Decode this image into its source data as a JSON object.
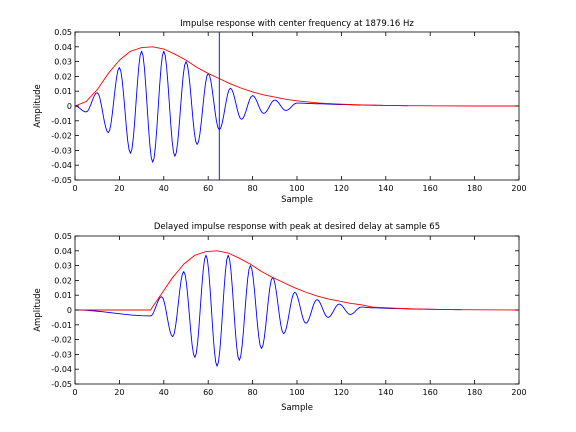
{
  "chart_data": [
    {
      "type": "line",
      "title": "Impulse response with center frequency at 1879.16 Hz",
      "xlabel": "Sample",
      "ylabel": "Amplitude",
      "xlim": [
        0,
        200
      ],
      "ylim": [
        -0.05,
        0.05
      ],
      "xticks": [
        "0",
        "20",
        "40",
        "60",
        "80",
        "100",
        "120",
        "140",
        "160",
        "180",
        "200"
      ],
      "yticks": [
        "0.05",
        "0.04",
        "0.03",
        "0.02",
        "0.01",
        "0",
        "-0.01",
        "-0.02",
        "-0.03",
        "-0.04",
        "-0.05"
      ],
      "grid": false,
      "series": [
        {
          "color": "#0000ff",
          "style": "oscillating impulse response",
          "x": [
            0,
            5,
            10,
            15,
            20,
            25,
            30,
            35,
            40,
            45,
            50,
            55,
            60,
            65,
            70,
            75,
            80,
            85,
            90,
            95,
            100,
            110,
            120,
            130,
            140,
            150
          ],
          "values": [
            0,
            -0.004,
            0.009,
            -0.018,
            0.026,
            -0.032,
            0.037,
            -0.038,
            0.037,
            -0.034,
            0.03,
            -0.026,
            0.022,
            -0.016,
            0.012,
            -0.009,
            0.007,
            -0.005,
            0.004,
            -0.003,
            0.002,
            0.0015,
            0.001,
            0.0006,
            0.0004,
            0.0002
          ]
        },
        {
          "color": "#ff0000",
          "style": "envelope",
          "x": [
            0,
            5,
            10,
            15,
            20,
            25,
            30,
            35,
            40,
            45,
            50,
            55,
            60,
            65,
            70,
            75,
            80,
            85,
            90,
            95,
            100,
            110,
            120,
            130,
            140,
            150,
            160,
            180,
            200
          ],
          "values": [
            0,
            0.003,
            0.011,
            0.022,
            0.031,
            0.037,
            0.0395,
            0.04,
            0.0385,
            0.035,
            0.031,
            0.026,
            0.022,
            0.0185,
            0.015,
            0.012,
            0.0095,
            0.0075,
            0.006,
            0.0045,
            0.0035,
            0.002,
            0.0012,
            0.0007,
            0.0004,
            0.0002,
            0.0001,
            0,
            0
          ]
        },
        {
          "color": "#0000ff",
          "style": "vertical marker",
          "x": [
            65,
            65
          ],
          "values": [
            -0.05,
            0.05
          ]
        }
      ]
    },
    {
      "type": "line",
      "title": "Delayed impulse response with peak at desired delay at sample 65",
      "xlabel": "Sample",
      "ylabel": "Amplitude",
      "xlim": [
        0,
        200
      ],
      "ylim": [
        -0.05,
        0.05
      ],
      "xticks": [
        "0",
        "20",
        "40",
        "60",
        "80",
        "100",
        "120",
        "140",
        "160",
        "180",
        "200"
      ],
      "yticks": [
        "0.05",
        "0.04",
        "0.03",
        "0.02",
        "0.01",
        "0",
        "-0.01",
        "-0.02",
        "-0.03",
        "-0.04",
        "-0.05"
      ],
      "grid": false,
      "series": [
        {
          "color": "#0000ff",
          "style": "delayed oscillating impulse response",
          "x": [
            0,
            34,
            39,
            44,
            49,
            54,
            59,
            64,
            69,
            74,
            79,
            84,
            89,
            94,
            99,
            104,
            109,
            114,
            119,
            124,
            129,
            134,
            144,
            154,
            164,
            174
          ],
          "values": [
            0,
            -0.004,
            0.009,
            -0.018,
            0.026,
            -0.032,
            0.037,
            -0.038,
            0.037,
            -0.034,
            0.03,
            -0.026,
            0.022,
            -0.016,
            0.012,
            -0.009,
            0.007,
            -0.005,
            0.004,
            -0.003,
            0.002,
            0.0015,
            0.001,
            0.0006,
            0.0004,
            0.0002
          ]
        },
        {
          "color": "#ff0000",
          "style": "envelope",
          "x": [
            0,
            34,
            39,
            44,
            49,
            54,
            59,
            64,
            69,
            74,
            79,
            84,
            89,
            94,
            99,
            104,
            109,
            114,
            119,
            124,
            129,
            134,
            144,
            154,
            164,
            174,
            184,
            200
          ],
          "values": [
            0,
            0,
            0.011,
            0.022,
            0.031,
            0.037,
            0.0395,
            0.04,
            0.0385,
            0.035,
            0.031,
            0.026,
            0.022,
            0.0185,
            0.015,
            0.012,
            0.0095,
            0.0075,
            0.006,
            0.0045,
            0.0035,
            0.002,
            0.0012,
            0.0007,
            0.0004,
            0.0002,
            0.0001,
            0
          ]
        }
      ]
    }
  ]
}
